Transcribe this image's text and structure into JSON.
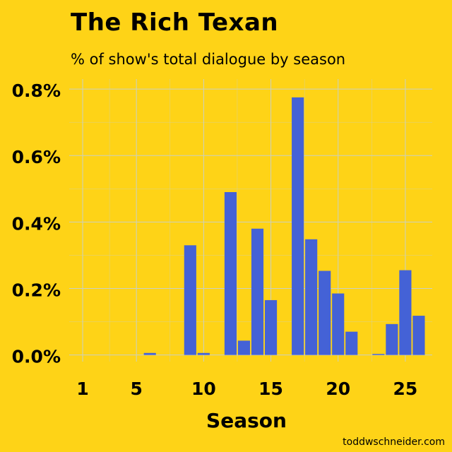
{
  "title": "The Rich Texan",
  "subtitle": "% of show's total dialogue by season",
  "credit": "toddwschneider.com",
  "colors": {
    "background": "#fed317",
    "bar": "#4462d6",
    "grid": "#c9d0c4"
  },
  "chart_data": {
    "type": "bar",
    "title": "The Rich Texan",
    "subtitle": "% of show's total dialogue by season",
    "xlabel": "Season",
    "ylabel": "",
    "x_ticks": [
      1,
      5,
      10,
      15,
      20,
      25
    ],
    "y_ticks": [
      0.0,
      0.2,
      0.4,
      0.6,
      0.8
    ],
    "y_tick_labels": [
      "0.0%",
      "0.2%",
      "0.4%",
      "0.6%",
      "0.8%"
    ],
    "xlim": [
      0,
      27
    ],
    "ylim": [
      -0.02,
      0.83
    ],
    "grid": true,
    "categories": [
      1,
      2,
      3,
      4,
      5,
      6,
      7,
      8,
      9,
      10,
      11,
      12,
      13,
      14,
      15,
      16,
      17,
      18,
      19,
      20,
      21,
      22,
      23,
      24,
      25,
      26
    ],
    "values": [
      0,
      0,
      0,
      0,
      0,
      0.006,
      0,
      0,
      0.33,
      0.006,
      0,
      0.49,
      0.043,
      0.38,
      0.165,
      0,
      0.775,
      0.348,
      0.253,
      0.185,
      0.07,
      0,
      0.003,
      0.093,
      0.255,
      0.118
    ]
  }
}
